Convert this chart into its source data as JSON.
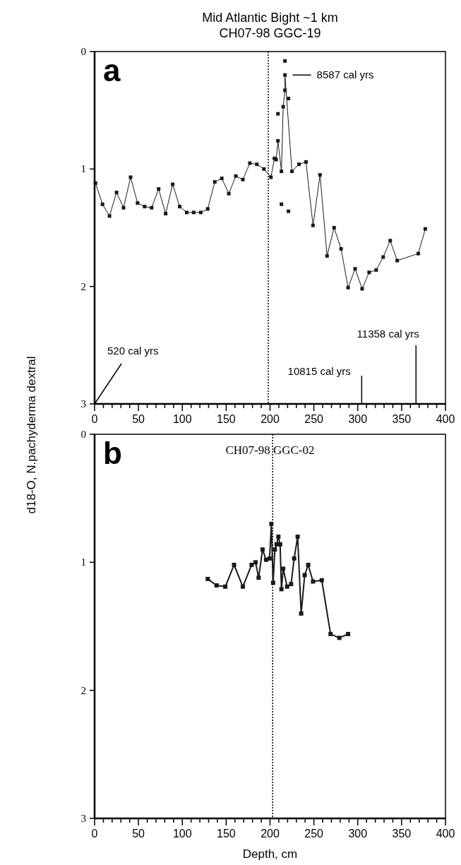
{
  "chart_data": [
    {
      "type": "line",
      "title": "Mid Atlantic Bight ~1 km",
      "subtitle": "CH07-98 GGC-19",
      "ylabel": "d18-O, N.pachyderma dextral",
      "xlim": [
        0,
        400
      ],
      "ylim": [
        3,
        0
      ],
      "xticks": [
        0,
        {
          "value": 10,
          "label": null
        },
        {
          "value": 20,
          "label": null
        },
        {
          "value": 30,
          "label": null
        },
        {
          "value": 40,
          "label": null
        },
        50,
        {
          "value": 60,
          "label": null
        },
        {
          "value": 70,
          "label": null
        },
        {
          "value": 80,
          "label": null
        },
        {
          "value": 90,
          "label": null
        },
        100,
        {
          "value": 110,
          "label": null
        },
        {
          "value": 120,
          "label": null
        },
        {
          "value": 130,
          "label": null
        },
        {
          "value": 140,
          "label": null
        },
        150,
        {
          "value": 160,
          "label": null
        },
        {
          "value": 170,
          "label": null
        },
        {
          "value": 180,
          "label": null
        },
        {
          "value": 190,
          "label": null
        },
        200,
        {
          "value": 210,
          "label": null
        },
        {
          "value": 220,
          "label": null
        },
        {
          "value": 230,
          "label": null
        },
        {
          "value": 240,
          "label": null
        },
        250,
        {
          "value": 260,
          "label": null
        },
        {
          "value": 270,
          "label": null
        },
        {
          "value": 280,
          "label": null
        },
        {
          "value": 290,
          "label": null
        },
        300,
        {
          "value": 310,
          "label": null
        },
        {
          "value": 320,
          "label": null
        },
        {
          "value": 330,
          "label": null
        },
        {
          "value": 340,
          "label": null
        },
        350,
        {
          "value": 360,
          "label": null
        },
        {
          "value": 370,
          "label": null
        },
        {
          "value": 380,
          "label": null
        },
        {
          "value": 390,
          "label": null
        },
        400
      ],
      "yticks": [
        0,
        1,
        2,
        3
      ],
      "grid": false,
      "marker": "square",
      "line_style": "solid",
      "series": [
        {
          "type": "line",
          "color": "#1a1a1a",
          "x": [
            1,
            9,
            17,
            25,
            33,
            41,
            49,
            57,
            65,
            73,
            81,
            89,
            97,
            105,
            113,
            121,
            129,
            137,
            145,
            153,
            161,
            169,
            177,
            185,
            193,
            201,
            205,
            207,
            209,
            213,
            215,
            217,
            217,
            225,
            233,
            241,
            249,
            257,
            265,
            273,
            281,
            289,
            297,
            305,
            313,
            321,
            329,
            337,
            345,
            369,
            377
          ],
          "values": [
            1.12,
            1.3,
            1.4,
            1.2,
            1.33,
            1.07,
            1.29,
            1.32,
            1.33,
            1.17,
            1.38,
            1.13,
            1.32,
            1.37,
            1.37,
            1.37,
            1.34,
            1.11,
            1.08,
            1.21,
            1.06,
            1.09,
            0.95,
            0.96,
            1.0,
            1.07,
            0.91,
            0.92,
            0.76,
            1.02,
            0.47,
            0.33,
            0.2,
            1.02,
            0.96,
            0.94,
            1.48,
            1.05,
            1.74,
            1.5,
            1.68,
            2.01,
            1.85,
            2.02,
            1.88,
            1.86,
            1.75,
            1.61,
            1.78,
            1.72,
            1.51
          ]
        },
        {
          "type": "scatter",
          "color": "#1a1a1a",
          "x": [
            209,
            213,
            217,
            221,
            221
          ],
          "values": [
            0.53,
            1.3,
            0.08,
            0.4,
            1.36
          ]
        }
      ],
      "ref_lines": [
        {
          "axis": "x",
          "value": 198,
          "line_style": "dotted"
        }
      ],
      "annotations": [
        "a",
        {
          "text": "8587 cal yrs",
          "x": 217,
          "y": 0.2
        },
        "520 cal yrs",
        "10815 cal yrs",
        "11358 cal yrs"
      ]
    },
    {
      "type": "line",
      "title": "CH07-98 GGC-02",
      "xlabel": "Depth, cm",
      "xlim": [
        0,
        400
      ],
      "ylim": [
        3,
        0
      ],
      "xticks": [
        0,
        {
          "value": 10,
          "label": null
        },
        {
          "value": 20,
          "label": null
        },
        {
          "value": 30,
          "label": null
        },
        {
          "value": 40,
          "label": null
        },
        50,
        {
          "value": 60,
          "label": null
        },
        {
          "value": 70,
          "label": null
        },
        {
          "value": 80,
          "label": null
        },
        {
          "value": 90,
          "label": null
        },
        100,
        {
          "value": 110,
          "label": null
        },
        {
          "value": 120,
          "label": null
        },
        {
          "value": 130,
          "label": null
        },
        {
          "value": 140,
          "label": null
        },
        150,
        {
          "value": 160,
          "label": null
        },
        {
          "value": 170,
          "label": null
        },
        {
          "value": 180,
          "label": null
        },
        {
          "value": 190,
          "label": null
        },
        200,
        {
          "value": 210,
          "label": null
        },
        {
          "value": 220,
          "label": null
        },
        {
          "value": 230,
          "label": null
        },
        {
          "value": 240,
          "label": null
        },
        250,
        {
          "value": 260,
          "label": null
        },
        {
          "value": 270,
          "label": null
        },
        {
          "value": 280,
          "label": null
        },
        {
          "value": 290,
          "label": null
        },
        300,
        {
          "value": 310,
          "label": null
        },
        {
          "value": 320,
          "label": null
        },
        {
          "value": 330,
          "label": null
        },
        {
          "value": 340,
          "label": null
        },
        350,
        {
          "value": 360,
          "label": null
        },
        {
          "value": 370,
          "label": null
        },
        {
          "value": 380,
          "label": null
        },
        {
          "value": 390,
          "label": null
        },
        400
      ],
      "yticks": [
        0,
        1,
        2,
        3
      ],
      "grid": false,
      "marker": "square",
      "line_style": "solid",
      "series": [
        {
          "type": "line",
          "color": "#1a1a1a",
          "x": [
            129,
            139,
            149,
            159,
            169,
            179,
            183.5,
            187,
            191.5,
            195.5,
            199.5,
            201.5,
            203.5,
            205.5,
            207.5,
            209.5,
            211.5,
            213,
            215,
            219.5,
            224,
            227.5,
            231.5,
            235.5,
            239.5,
            243.5,
            249,
            259,
            269,
            279,
            289
          ],
          "values": [
            1.13,
            1.18,
            1.19,
            1.02,
            1.19,
            1.02,
            1.0,
            1.12,
            0.9,
            0.98,
            0.97,
            0.7,
            1.16,
            0.9,
            0.86,
            0.8,
            0.86,
            1.21,
            1.05,
            1.19,
            1.17,
            0.97,
            0.8,
            1.4,
            1.1,
            1.02,
            1.15,
            1.14,
            1.56,
            1.59,
            1.56
          ]
        }
      ],
      "ref_lines": [
        {
          "axis": "x",
          "value": 203,
          "line_style": "dotted"
        }
      ],
      "annotations": [
        "b"
      ]
    }
  ]
}
